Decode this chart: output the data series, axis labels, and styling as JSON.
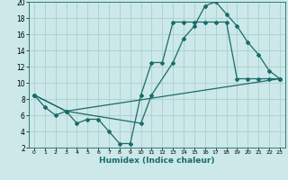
{
  "xlabel": "Humidex (Indice chaleur)",
  "bg_color": "#cce8e8",
  "grid_color": "#aacfcf",
  "line_color": "#1a6b6b",
  "xlim": [
    -0.5,
    23.5
  ],
  "ylim": [
    2,
    20
  ],
  "xticks": [
    0,
    1,
    2,
    3,
    4,
    5,
    6,
    7,
    8,
    9,
    10,
    11,
    12,
    13,
    14,
    15,
    16,
    17,
    18,
    19,
    20,
    21,
    22,
    23
  ],
  "yticks": [
    2,
    4,
    6,
    8,
    10,
    12,
    14,
    16,
    18,
    20
  ],
  "line1_x": [
    0,
    1,
    2,
    3,
    4,
    5,
    6,
    7,
    8,
    9,
    10,
    11,
    12,
    13,
    14,
    15,
    16,
    17,
    18,
    19,
    20,
    21,
    22,
    23
  ],
  "line1_y": [
    8.5,
    7.0,
    6.0,
    6.5,
    5.0,
    5.5,
    5.5,
    4.0,
    2.5,
    2.5,
    8.5,
    12.5,
    12.5,
    17.5,
    17.5,
    17.5,
    17.5,
    17.5,
    17.5,
    10.5,
    10.5,
    10.5,
    10.5,
    10.5
  ],
  "line2_x": [
    0,
    3,
    10,
    11,
    13,
    14,
    15,
    16,
    17,
    18,
    19,
    20,
    21,
    22,
    23
  ],
  "line2_y": [
    8.5,
    6.5,
    5.0,
    8.5,
    12.5,
    15.5,
    17.0,
    19.5,
    20.0,
    18.5,
    17.0,
    15.0,
    13.5,
    11.5,
    10.5
  ],
  "line3_x": [
    0,
    3,
    23
  ],
  "line3_y": [
    8.5,
    6.5,
    10.5
  ]
}
